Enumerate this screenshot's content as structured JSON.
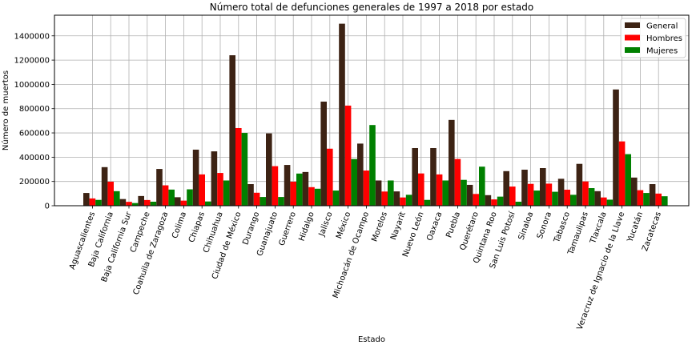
{
  "chart_data": {
    "type": "bar",
    "title": "Número total de defunciones generales de 1997 a 2018 por estado",
    "xlabel": "Estado",
    "ylabel": "Número de muertos",
    "ylim": [
      0,
      1570000
    ],
    "yticks": [
      0,
      200000,
      400000,
      600000,
      800000,
      1000000,
      1200000,
      1400000
    ],
    "ytick_labels": [
      "0",
      "200000",
      "400000",
      "600000",
      "800000",
      "1000000",
      "1200000",
      "1400000"
    ],
    "grid": true,
    "legend_position": "top-right",
    "categories": [
      "Aguascalientes",
      "Baja California",
      "Baja California Sur",
      "Campeche",
      "Coahuila de Zaragoza",
      "Colima",
      "Chiapas",
      "Chihuahua",
      "Ciudad de México",
      "Durango",
      "Guanajuato",
      "Guerrero",
      "Hidalgo",
      "Jalisco",
      "México",
      "Michoacán de Ocampo",
      "Morelos",
      "Nayarit",
      "Nuevo León",
      "Oaxaca",
      "Puebla",
      "Querétaro",
      "Quintana Roo",
      "San Luis Potosí",
      "Sinaloa",
      "Sonora",
      "Tabasco",
      "Tamaulipas",
      "Tlaxcala",
      "Veracruz de Ignacio de la Llave",
      "Yucatán",
      "Zacatecas"
    ],
    "series": [
      {
        "name": "General",
        "color": "#3d2314",
        "values": [
          105000,
          318000,
          55000,
          80000,
          303000,
          70000,
          462000,
          448000,
          1240000,
          178000,
          596000,
          336000,
          278000,
          858000,
          1500000,
          512000,
          208000,
          118000,
          475000,
          475000,
          707000,
          172000,
          87000,
          285000,
          297000,
          310000,
          222000,
          345000,
          120000,
          958000,
          232000,
          178000
        ]
      },
      {
        "name": "Hombres",
        "color": "#ff0000",
        "values": [
          60000,
          198000,
          32000,
          47000,
          168000,
          42000,
          258000,
          270000,
          640000,
          107000,
          326000,
          198000,
          153000,
          470000,
          825000,
          290000,
          117000,
          68000,
          266000,
          258000,
          385000,
          97000,
          52000,
          158000,
          180000,
          182000,
          132000,
          200000,
          68000,
          530000,
          128000,
          100000
        ]
      },
      {
        "name": "Mujeres",
        "color": "#008000",
        "values": [
          48000,
          120000,
          22000,
          33000,
          133000,
          135000,
          35000,
          208000,
          600000,
          72000,
          72000,
          265000,
          140000,
          125000,
          385000,
          665000,
          208000,
          90000,
          48000,
          208000,
          213000,
          322000,
          75000,
          33000,
          125000,
          115000,
          90000,
          145000,
          50000,
          425000,
          105000,
          78000
        ]
      }
    ]
  }
}
